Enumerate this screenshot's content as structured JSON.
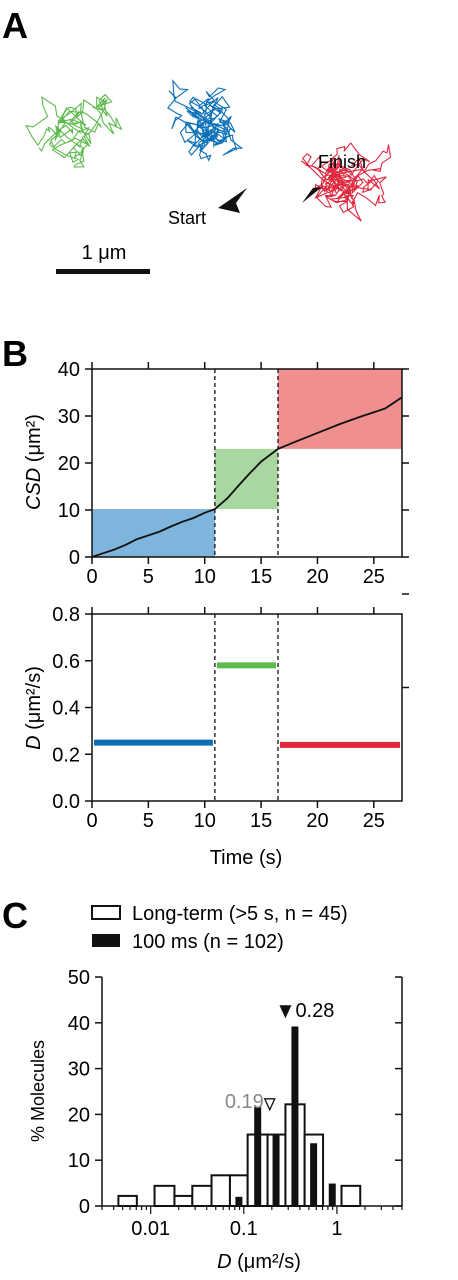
{
  "panels": {
    "a": "A",
    "b": "B",
    "c": "C"
  },
  "trajectory": {
    "start_label": "Start",
    "finish_label": "Finish",
    "scale_label": "1 μm",
    "colors": {
      "segment1": "#0b6fb8",
      "segment2": "#5dba4d",
      "segment3": "#e0283f"
    }
  },
  "chart_data": [
    {
      "type": "line",
      "title": "",
      "xlabel": "Time (s)",
      "ylabel": "CSD (μm²)",
      "ylabel_italic": "CSD",
      "ylabel_unit": " (μm²)",
      "xlim": [
        0,
        27.5
      ],
      "ylim": [
        0,
        40
      ],
      "xticks": [
        0,
        5,
        10,
        15,
        20,
        25
      ],
      "yticks": [
        0,
        10,
        20,
        30,
        40
      ],
      "series": [
        {
          "x": [
            0,
            1,
            2,
            3,
            4,
            5,
            6,
            7,
            8,
            9,
            10,
            10.9,
            12,
            13,
            14,
            15,
            16.5,
            18,
            20,
            22,
            24,
            26,
            27.5
          ],
          "y": [
            0,
            0.8,
            1.6,
            2.6,
            3.8,
            4.6,
            5.4,
            6.5,
            7.5,
            8.3,
            9.4,
            10.2,
            12.5,
            15.2,
            17.8,
            20.3,
            23.0,
            24.5,
            26.4,
            28.3,
            30.0,
            31.6,
            34.0
          ]
        }
      ],
      "shaded_regions": [
        {
          "x": [
            0,
            10.9
          ],
          "y": [
            0,
            10.2
          ],
          "color": "#7fb4dc"
        },
        {
          "x": [
            10.9,
            16.5
          ],
          "y": [
            10.2,
            23.0
          ],
          "color": "#a8d8a0"
        },
        {
          "x": [
            16.5,
            27.5
          ],
          "y": [
            23.0,
            40
          ],
          "color": "#ef8f90"
        }
      ],
      "dividers_x": [
        10.9,
        16.5
      ]
    },
    {
      "type": "line",
      "title": "",
      "xlabel": "Time (s)",
      "ylabel": "D (μm²/s)",
      "ylabel_italic": "D",
      "ylabel_unit": " (μm²/s)",
      "xlim": [
        0,
        27.5
      ],
      "ylim": [
        0,
        0.8
      ],
      "xticks": [
        0,
        5,
        10,
        15,
        20,
        25
      ],
      "yticks": [
        0.0,
        0.2,
        0.4,
        0.6,
        0.8
      ],
      "ytick_labels": [
        "0.0",
        "0.2",
        "0.4",
        "0.6",
        "0.8"
      ],
      "series": [
        {
          "x": [
            0,
            10.9
          ],
          "y": [
            0.25,
            0.25
          ],
          "color": "#0b6fb8"
        },
        {
          "x": [
            10.9,
            16.5
          ],
          "y": [
            0.58,
            0.58
          ],
          "color": "#5dba4d"
        },
        {
          "x": [
            16.5,
            27.5
          ],
          "y": [
            0.24,
            0.24
          ],
          "color": "#e0283f"
        }
      ],
      "dividers_x": [
        10.9,
        16.5
      ]
    },
    {
      "type": "bar",
      "title": "",
      "xlabel": "D (μm²/s)",
      "xlabel_italic": "D",
      "xlabel_unit": " (μm²/s)",
      "ylabel": "% Molecules",
      "x_scale": "log",
      "xlim": [
        0.003,
        5
      ],
      "ylim": [
        0,
        50
      ],
      "xticks": [
        0.01,
        0.1,
        1
      ],
      "xtick_labels": [
        "0.01",
        "0.1",
        "1"
      ],
      "yticks": [
        0,
        10,
        20,
        30,
        40,
        50
      ],
      "series": [
        {
          "name": "Long-term (>5 s, n = 45)",
          "style": "open",
          "bin_edges": [
            0.0045,
            0.0071,
            0.011,
            0.018,
            0.028,
            0.045,
            0.071,
            0.11,
            0.18,
            0.28,
            0.45,
            0.71,
            1.12,
            1.78
          ],
          "values": [
            2.2,
            0,
            4.4,
            2.2,
            4.4,
            6.7,
            6.7,
            15.6,
            15.6,
            22.2,
            15.6,
            0,
            4.4
          ]
        },
        {
          "name": "100 ms (n = 102)",
          "style": "filled",
          "x": [
            0.0886,
            0.141,
            0.222,
            0.354,
            0.562,
            0.891
          ],
          "values": [
            2.0,
            21.6,
            15.7,
            39.2,
            13.7,
            4.9
          ]
        }
      ],
      "annotations": [
        {
          "text": "0.19",
          "x": 0.19,
          "y": 21,
          "marker": "open-triangle"
        },
        {
          "text": "0.28",
          "x": 0.28,
          "y": 41,
          "marker": "filled-triangle"
        }
      ],
      "legend": "top"
    }
  ]
}
